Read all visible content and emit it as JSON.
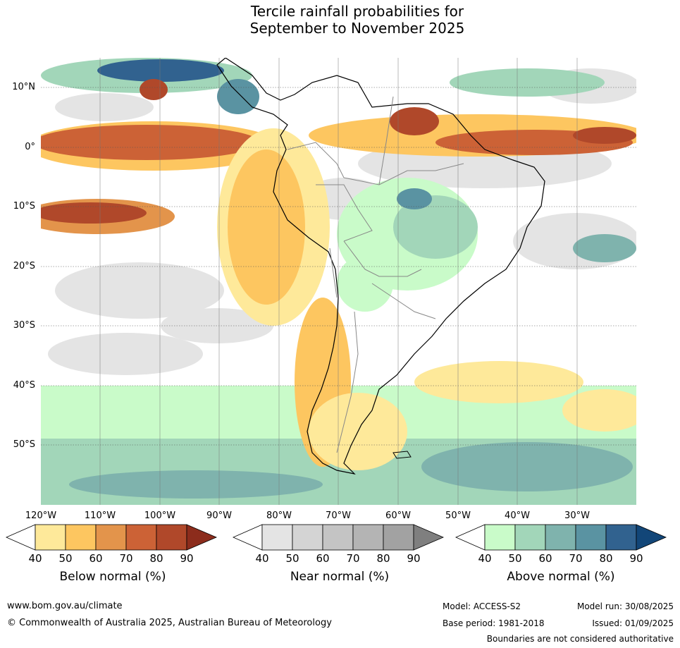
{
  "title_line1": "Tercile rainfall probabilities for",
  "title_line2": "September to November 2025",
  "lat_labels": [
    "10°N",
    "0°",
    "10°S",
    "20°S",
    "30°S",
    "40°S",
    "50°S"
  ],
  "lon_labels": [
    "120°W",
    "110°W",
    "100°W",
    "90°W",
    "80°W",
    "70°W",
    "60°W",
    "50°W",
    "40°W",
    "30°W"
  ],
  "legends": {
    "below": {
      "title": "Below normal (%)",
      "ticks": [
        "40",
        "50",
        "60",
        "70",
        "80",
        "90"
      ],
      "colors": [
        "#ffffff",
        "#fee99a",
        "#fdc660",
        "#e3944b",
        "#cc6236",
        "#b0482a",
        "#8c2c1c"
      ]
    },
    "near": {
      "title": "Near normal (%)",
      "ticks": [
        "40",
        "50",
        "60",
        "70",
        "80",
        "90"
      ],
      "colors": [
        "#ffffff",
        "#e4e4e4",
        "#d4d4d4",
        "#c4c4c4",
        "#b4b4b4",
        "#a2a2a2",
        "#7f7f7f"
      ]
    },
    "above": {
      "title": "Above normal (%)",
      "ticks": [
        "40",
        "50",
        "60",
        "70",
        "80",
        "90"
      ],
      "colors": [
        "#ffffff",
        "#c9fbc9",
        "#a2d6b9",
        "#7fb3ad",
        "#5a93a2",
        "#31628f",
        "#124678"
      ]
    }
  },
  "footer": {
    "website": "www.bom.gov.au/climate",
    "copyright": "© Commonwealth of Australia 2025, Australian Bureau of Meteorology",
    "model": "Model: ACCESS-S2",
    "base_period": "Base period: 1981-2018",
    "model_run": "Model run: 30/08/2025",
    "issued": "Issued: 01/09/2025",
    "disclaimer": "Boundaries are not considered authoritative"
  }
}
